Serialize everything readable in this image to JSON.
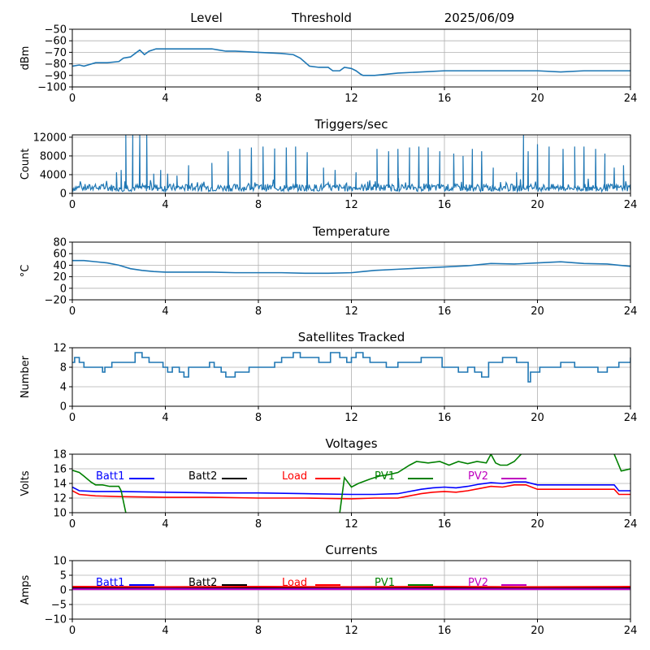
{
  "header": {
    "left": "Level",
    "mid": "Threshold",
    "date": "2025/06/09"
  },
  "chart_data": [
    {
      "id": "level",
      "type": "line",
      "title": "",
      "ylabel": "dBm",
      "ylim": [
        -100,
        -50
      ],
      "yticks": [
        "−50",
        "−60",
        "−70",
        "−80",
        "−90",
        "−100"
      ],
      "ytick_values": [
        -50,
        -60,
        -70,
        -80,
        -90,
        -100
      ],
      "xlim": [
        0,
        24
      ],
      "xticks": [
        "0",
        "4",
        "8",
        "12",
        "16",
        "20",
        "24"
      ],
      "grid": true,
      "series": [
        {
          "color": "#1f77b4",
          "x": [
            0,
            0.3,
            0.5,
            1,
            1.5,
            2,
            2.2,
            2.5,
            2.7,
            2.9,
            3.1,
            3.3,
            3.6,
            4,
            5,
            6,
            6.3,
            6.6,
            7,
            8,
            9,
            9.5,
            9.8,
            10.2,
            10.6,
            11,
            11.2,
            11.5,
            11.7,
            12,
            12.2,
            12.4,
            12.5,
            13,
            14,
            15,
            16,
            17,
            18,
            19,
            20,
            21,
            22,
            23,
            24
          ],
          "y": [
            -82,
            -81,
            -82,
            -79,
            -79,
            -78,
            -75,
            -74,
            -71,
            -68,
            -72,
            -69,
            -67,
            -67,
            -67,
            -67,
            -68,
            -69,
            -69,
            -70,
            -71,
            -72,
            -75,
            -82,
            -83,
            -83,
            -86,
            -86,
            -83,
            -84,
            -86,
            -89,
            -90,
            -90,
            -88,
            -87,
            -86,
            -86,
            -86,
            -86,
            -86,
            -87,
            -86,
            -86,
            -86
          ]
        }
      ]
    },
    {
      "id": "triggers",
      "type": "line",
      "title": "Triggers/sec",
      "ylabel": "Count",
      "ylim": [
        0,
        12500
      ],
      "yticks": [
        "0",
        "4000",
        "8000",
        "12000"
      ],
      "ytick_values": [
        0,
        4000,
        8000,
        12000
      ],
      "xlim": [
        0,
        24
      ],
      "xticks": [
        "0",
        "4",
        "8",
        "12",
        "16",
        "20",
        "24"
      ],
      "grid": true,
      "baseline": 1200,
      "spikes": [
        [
          2.3,
          12500
        ],
        [
          2.6,
          12500
        ],
        [
          2.9,
          12500
        ],
        [
          3.2,
          12500
        ],
        [
          1.9,
          4500
        ],
        [
          2.1,
          5000
        ],
        [
          3.5,
          4200
        ],
        [
          3.8,
          5000
        ],
        [
          4.1,
          4200
        ],
        [
          4.5,
          3800
        ],
        [
          5.0,
          6000
        ],
        [
          6.0,
          6500
        ],
        [
          6.7,
          9000
        ],
        [
          7.2,
          9500
        ],
        [
          7.7,
          9800
        ],
        [
          8.2,
          10000
        ],
        [
          8.7,
          9600
        ],
        [
          9.2,
          9800
        ],
        [
          9.6,
          10000
        ],
        [
          10.1,
          8800
        ],
        [
          10.8,
          5500
        ],
        [
          11.3,
          5000
        ],
        [
          12.2,
          4500
        ],
        [
          12.7,
          2500
        ],
        [
          13.1,
          9500
        ],
        [
          13.6,
          9000
        ],
        [
          14.0,
          9500
        ],
        [
          14.5,
          9800
        ],
        [
          14.9,
          10000
        ],
        [
          15.3,
          9800
        ],
        [
          15.8,
          9000
        ],
        [
          16.4,
          8500
        ],
        [
          16.8,
          8000
        ],
        [
          17.2,
          9500
        ],
        [
          17.6,
          9000
        ],
        [
          18.1,
          5500
        ],
        [
          19.1,
          4500
        ],
        [
          19.4,
          12500
        ],
        [
          19.6,
          9000
        ],
        [
          20.0,
          10500
        ],
        [
          20.5,
          10000
        ],
        [
          21.1,
          9500
        ],
        [
          21.6,
          10000
        ],
        [
          22.0,
          10000
        ],
        [
          22.5,
          9500
        ],
        [
          22.9,
          8500
        ],
        [
          23.3,
          5500
        ],
        [
          23.7,
          6000
        ]
      ]
    },
    {
      "id": "temperature",
      "type": "line",
      "title": "Temperature",
      "ylabel": "°C",
      "ylim": [
        -20,
        80
      ],
      "yticks": [
        "−20",
        "0",
        "20",
        "40",
        "60",
        "80"
      ],
      "ytick_values": [
        -20,
        0,
        20,
        40,
        60,
        80
      ],
      "xlim": [
        0,
        24
      ],
      "xticks": [
        "0",
        "4",
        "8",
        "12",
        "16",
        "20",
        "24"
      ],
      "grid": true,
      "series": [
        {
          "color": "#1f77b4",
          "x": [
            0,
            0.5,
            1,
            1.5,
            2,
            2.5,
            3,
            3.5,
            4,
            5,
            6,
            7,
            8,
            9,
            10,
            11,
            12,
            12.5,
            13,
            14,
            15,
            16,
            17,
            17.5,
            18,
            19,
            20,
            21,
            22,
            23,
            24
          ],
          "y": [
            48,
            48,
            46,
            44,
            40,
            34,
            31,
            29,
            28,
            28,
            28,
            27,
            27,
            27,
            26,
            26,
            27,
            29,
            31,
            33,
            35,
            37,
            39,
            41,
            43,
            42,
            44,
            46,
            43,
            42,
            38
          ]
        }
      ]
    },
    {
      "id": "satellites",
      "type": "line",
      "title": "Satellites Tracked",
      "ylabel": "Number",
      "ylim": [
        0,
        12
      ],
      "yticks": [
        "0",
        "4",
        "8",
        "12"
      ],
      "ytick_values": [
        0,
        4,
        8,
        12
      ],
      "xlim": [
        0,
        24
      ],
      "xticks": [
        "0",
        "4",
        "8",
        "12",
        "16",
        "20",
        "24"
      ],
      "grid": true,
      "step": true,
      "series": [
        {
          "color": "#1f77b4",
          "x": [
            0,
            0.1,
            0.3,
            0.5,
            0.6,
            1.3,
            1.4,
            1.7,
            2.6,
            2.7,
            3.0,
            3.3,
            3.5,
            3.9,
            4.1,
            4.3,
            4.6,
            4.8,
            5.0,
            5.5,
            5.9,
            6.1,
            6.4,
            6.6,
            6.8,
            7.0,
            7.3,
            7.6,
            8.0,
            8.7,
            9.0,
            9.5,
            9.8,
            10.3,
            10.6,
            11.1,
            11.5,
            11.8,
            12.0,
            12.2,
            12.5,
            12.8,
            13.2,
            13.5,
            14.0,
            14.3,
            15.0,
            15.5,
            15.9,
            16.2,
            16.6,
            17.0,
            17.3,
            17.6,
            17.9,
            18.5,
            18.8,
            19.1,
            19.3,
            19.6,
            19.7,
            20.1,
            20.5,
            21.0,
            21.6,
            22.2,
            22.6,
            23.0,
            23.5,
            23.8,
            24
          ],
          "y": [
            9,
            10,
            9,
            8,
            8,
            7,
            8,
            9,
            9,
            11,
            10,
            9,
            9,
            8,
            7,
            8,
            7,
            6,
            8,
            8,
            9,
            8,
            7,
            6,
            6,
            7,
            7,
            8,
            8,
            9,
            10,
            11,
            10,
            10,
            9,
            11,
            10,
            9,
            10,
            11,
            10,
            9,
            9,
            8,
            9,
            9,
            10,
            10,
            8,
            8,
            7,
            8,
            7,
            6,
            9,
            10,
            10,
            9,
            9,
            5,
            7,
            8,
            8,
            9,
            8,
            8,
            7,
            8,
            9,
            9,
            10
          ]
        }
      ]
    },
    {
      "id": "voltages",
      "type": "line",
      "title": "Voltages",
      "ylabel": "Volts",
      "ylim": [
        10,
        18
      ],
      "yticks": [
        "10",
        "12",
        "14",
        "16",
        "18"
      ],
      "ytick_values": [
        10,
        12,
        14,
        16,
        18
      ],
      "xlim": [
        0,
        24
      ],
      "xticks": [
        "0",
        "4",
        "8",
        "12",
        "16",
        "20",
        "24"
      ],
      "grid": true,
      "legend": [
        "Batt1",
        "Batt2",
        "Load",
        "PV1",
        "PV2"
      ],
      "series": [
        {
          "name": "Batt1",
          "color": "#0000ff",
          "x": [
            0,
            0.3,
            1,
            2,
            4,
            6,
            8,
            10,
            12,
            13,
            14,
            14.5,
            15,
            15.5,
            16,
            16.5,
            17,
            17.5,
            18,
            18.5,
            19,
            19.5,
            20,
            21,
            22,
            23,
            23.3,
            23.5,
            24
          ],
          "y": [
            13.5,
            13.0,
            12.9,
            12.9,
            12.8,
            12.7,
            12.7,
            12.6,
            12.5,
            12.5,
            12.6,
            12.9,
            13.2,
            13.4,
            13.5,
            13.4,
            13.6,
            13.9,
            14.1,
            14.0,
            14.2,
            14.2,
            13.8,
            13.8,
            13.8,
            13.8,
            13.8,
            13.0,
            13.0
          ]
        },
        {
          "name": "Load",
          "color": "#ff0000",
          "x": [
            0,
            0.3,
            1,
            2,
            4,
            6,
            8,
            10,
            12,
            13,
            14,
            14.5,
            15,
            15.5,
            16,
            16.5,
            17,
            17.5,
            18,
            18.5,
            19,
            19.5,
            20,
            21,
            22,
            23,
            23.3,
            23.5,
            24
          ],
          "y": [
            13.0,
            12.5,
            12.3,
            12.2,
            12.1,
            12.1,
            12.0,
            12.0,
            11.9,
            12.0,
            12.0,
            12.3,
            12.6,
            12.8,
            12.9,
            12.8,
            13.0,
            13.3,
            13.6,
            13.5,
            13.8,
            13.8,
            13.2,
            13.2,
            13.2,
            13.2,
            13.2,
            12.5,
            12.5
          ]
        },
        {
          "name": "PV1",
          "color": "#008000",
          "x": [
            0,
            0.3,
            0.5,
            0.8,
            1,
            1.3,
            1.6,
            2,
            2.1,
            2.3
          ],
          "y": [
            15.8,
            15.5,
            15.0,
            14.2,
            13.8,
            13.8,
            13.6,
            13.6,
            13.0,
            10.0
          ]
        },
        {
          "name": "PV1",
          "color": "#008000",
          "x": [
            11.5,
            11.7,
            12,
            12.3,
            12.8,
            13.2,
            13.6,
            14.0,
            14.5,
            14.8,
            15.3,
            15.8,
            16.2,
            16.6,
            17,
            17.4,
            17.8,
            18,
            18.2,
            18.4,
            18.7,
            19.0,
            19.3
          ],
          "y": [
            10.0,
            14.8,
            13.5,
            14.0,
            14.6,
            15.0,
            15.2,
            15.5,
            16.5,
            17.0,
            16.8,
            17.0,
            16.5,
            17.0,
            16.7,
            17.0,
            16.8,
            18.0,
            16.8,
            16.5,
            16.5,
            17.0,
            18.0
          ]
        },
        {
          "name": "PV1",
          "color": "#008000",
          "x": [
            23.3,
            23.6,
            24
          ],
          "y": [
            18.0,
            15.7,
            16.0
          ]
        }
      ]
    },
    {
      "id": "currents",
      "type": "line",
      "title": "Currents",
      "ylabel": "Amps",
      "ylim": [
        -10,
        10
      ],
      "yticks": [
        "−10",
        "−5",
        "0",
        "5",
        "10"
      ],
      "ytick_values": [
        -10,
        -5,
        0,
        5,
        10
      ],
      "xlim": [
        0,
        24
      ],
      "xticks": [
        "0",
        "4",
        "8",
        "12",
        "16",
        "20",
        "24"
      ],
      "grid": true,
      "legend": [
        "Batt1",
        "Batt2",
        "Load",
        "PV1",
        "PV2"
      ],
      "series": [
        {
          "name": "Batt1",
          "color": "#0000ff",
          "x": [
            0,
            4,
            8,
            12,
            16,
            20,
            24
          ],
          "y": [
            0.4,
            0.5,
            0.4,
            0.5,
            0.4,
            0.4,
            0.4
          ]
        },
        {
          "name": "Batt2",
          "color": "#000000",
          "x": [
            0,
            4,
            8,
            12,
            16,
            20,
            24
          ],
          "y": [
            0.8,
            0.9,
            0.8,
            0.9,
            0.8,
            0.8,
            0.8
          ]
        },
        {
          "name": "Load",
          "color": "#ff0000",
          "x": [
            0,
            4,
            8,
            12,
            16,
            20,
            24
          ],
          "y": [
            1.1,
            1.0,
            1.1,
            1.0,
            1.1,
            1.0,
            1.1
          ]
        },
        {
          "name": "PV2",
          "color": "#bf00bf",
          "x": [
            0,
            4,
            8,
            12,
            16,
            20,
            24
          ],
          "y": [
            0.2,
            0.2,
            0.2,
            0.2,
            0.2,
            0.2,
            0.2
          ]
        }
      ]
    }
  ],
  "legend_colors": {
    "Batt1": "#0000ff",
    "Batt2": "#000000",
    "Load": "#ff0000",
    "PV1": "#008000",
    "PV2": "#bf00bf"
  }
}
